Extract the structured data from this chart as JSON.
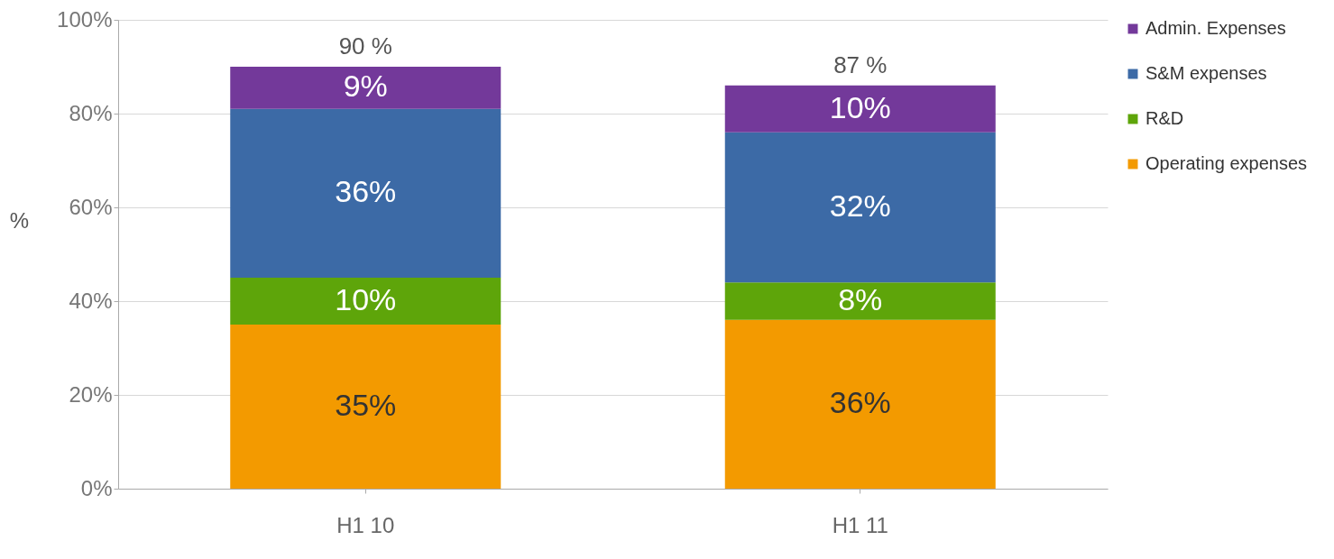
{
  "chart_data": {
    "type": "bar",
    "stacked": true,
    "ylabel": "%",
    "categories": [
      "H1 10",
      "H1 11"
    ],
    "series": [
      {
        "name": "Operating expenses",
        "color": "#f39a00",
        "values": [
          35,
          36
        ],
        "value_labels": [
          "35%",
          "36%"
        ]
      },
      {
        "name": "R&D",
        "color": "#5ea50a",
        "values": [
          10,
          8
        ],
        "value_labels": [
          "10%",
          "8%"
        ]
      },
      {
        "name": "S&M expenses",
        "color": "#3c6aa6",
        "values": [
          36,
          32
        ],
        "value_labels": [
          "36%",
          "32%"
        ]
      },
      {
        "name": "Admin. Expenses",
        "color": "#73399a",
        "values": [
          9,
          10
        ],
        "value_labels": [
          "9%",
          "10%"
        ]
      }
    ],
    "totals": [
      "90 %",
      "87 %"
    ],
    "ylim": [
      0,
      100
    ],
    "yticks": [
      {
        "value": 0,
        "label": "0%"
      },
      {
        "value": 20,
        "label": "20%"
      },
      {
        "value": 40,
        "label": "40%"
      },
      {
        "value": 60,
        "label": "60%"
      },
      {
        "value": 80,
        "label": "80%"
      },
      {
        "value": 100,
        "label": "100%"
      }
    ],
    "grid": "y",
    "legend": "right"
  }
}
